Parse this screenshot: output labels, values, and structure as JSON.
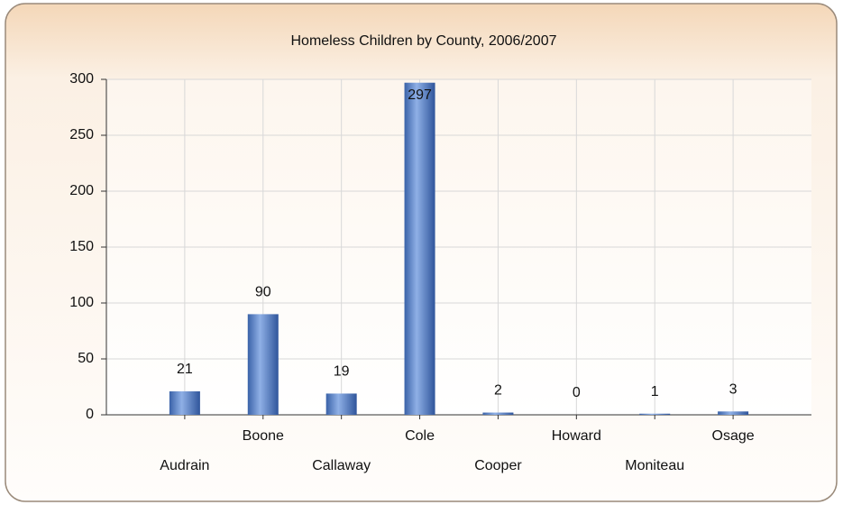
{
  "chart_data": {
    "type": "bar",
    "title": "Homeless Children by County, 2006/2007",
    "categories": [
      "Audrain",
      "Boone",
      "Callaway",
      "Cole",
      "Cooper",
      "Howard",
      "Moniteau",
      "Osage"
    ],
    "values": [
      21,
      90,
      19,
      297,
      2,
      0,
      1,
      3
    ],
    "color": "#5b86c8",
    "ylim": [
      0,
      300
    ],
    "yticks": [
      0,
      50,
      100,
      150,
      200,
      250,
      300
    ],
    "grid": true
  }
}
